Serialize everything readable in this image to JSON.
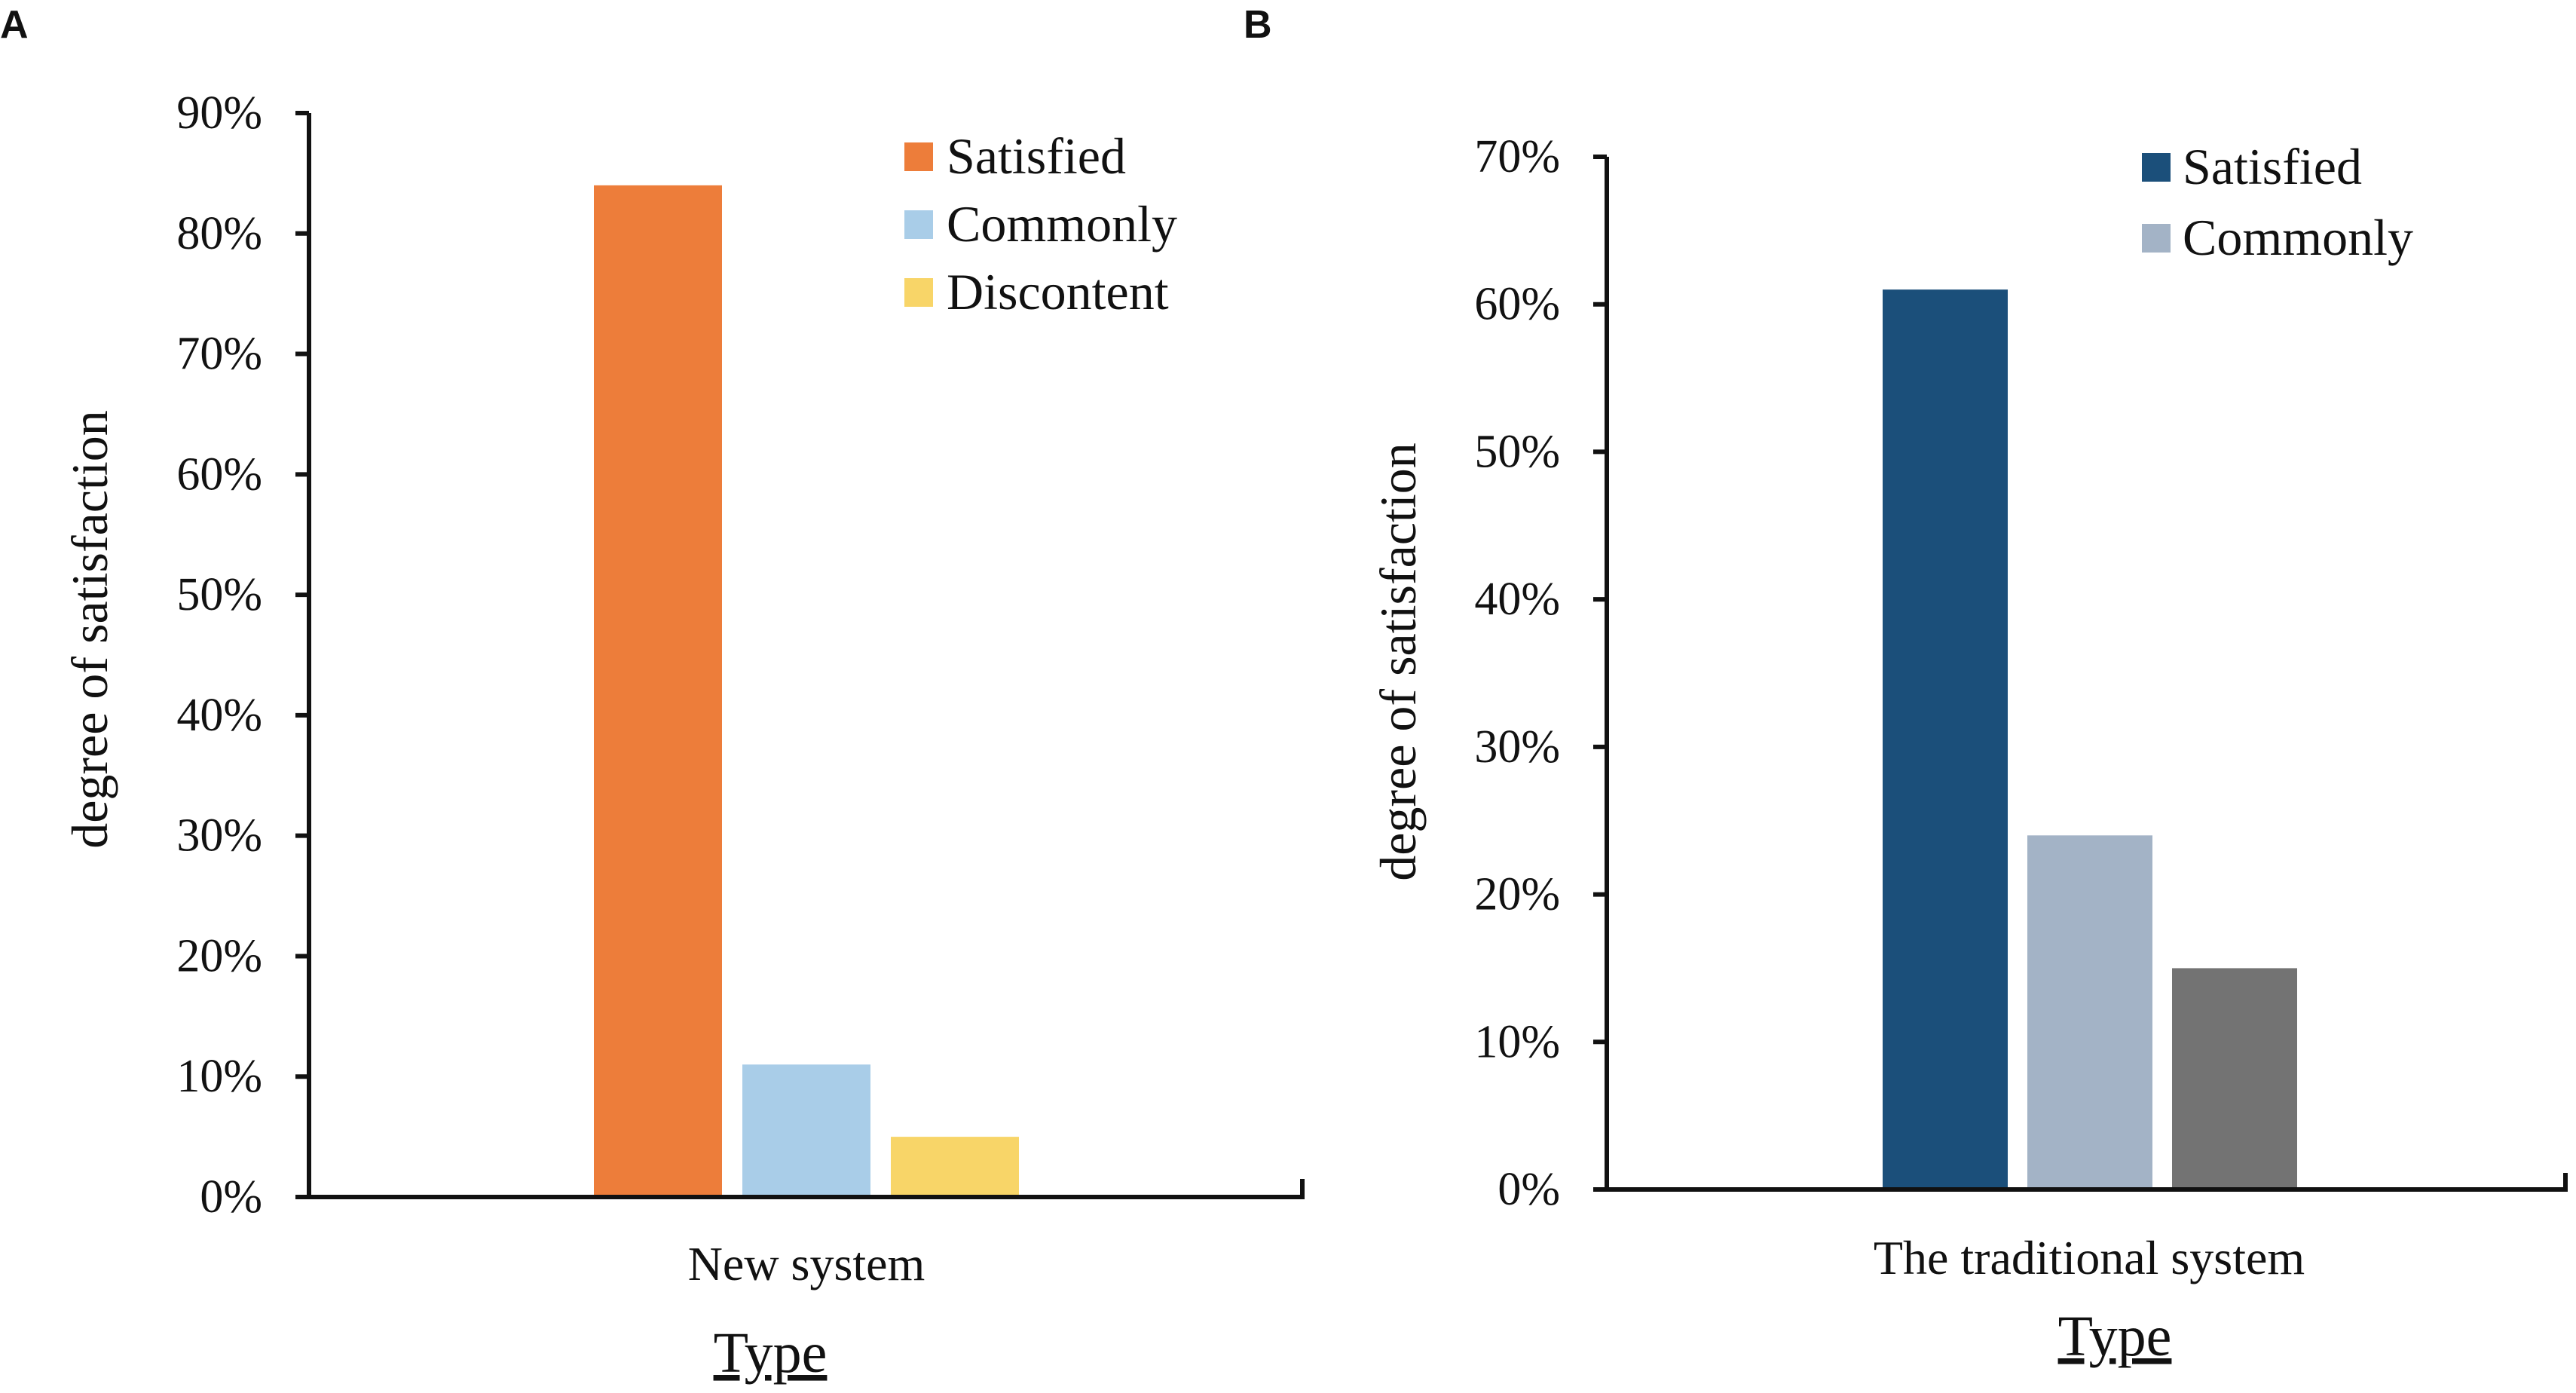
{
  "chart_data": [
    {
      "panel": "A",
      "type": "bar",
      "categories": [
        "New system"
      ],
      "series": [
        {
          "name": "Satisfied",
          "values": [
            84
          ],
          "color": "#ED7D3A"
        },
        {
          "name": "Commonly",
          "values": [
            11
          ],
          "color": "#A9CDE8"
        },
        {
          "name": "Discontent",
          "values": [
            5
          ],
          "color": "#F8D568"
        }
      ],
      "ylabel": "degree of satisfaction",
      "xlabel": "Type",
      "ylim": [
        0,
        90
      ],
      "yticks": [
        "0%",
        "10%",
        "20%",
        "30%",
        "40%",
        "50%",
        "60%",
        "70%",
        "80%",
        "90%"
      ],
      "legend_position": "top-right"
    },
    {
      "panel": "B",
      "type": "bar",
      "categories": [
        "The traditional system"
      ],
      "series": [
        {
          "name": "Satisfied",
          "values": [
            61
          ],
          "color": "#1B4F7A",
          "in_legend": true
        },
        {
          "name": "Commonly",
          "values": [
            24
          ],
          "color": "#A3B3C6",
          "in_legend": true
        },
        {
          "name": "",
          "values": [
            15
          ],
          "color": "#737373",
          "in_legend": false
        }
      ],
      "ylabel": "degree of satisfaction",
      "xlabel": "Type",
      "ylim": [
        0,
        70
      ],
      "yticks": [
        "0%",
        "10%",
        "20%",
        "30%",
        "40%",
        "50%",
        "60%",
        "70%"
      ],
      "legend_position": "top-right"
    }
  ]
}
